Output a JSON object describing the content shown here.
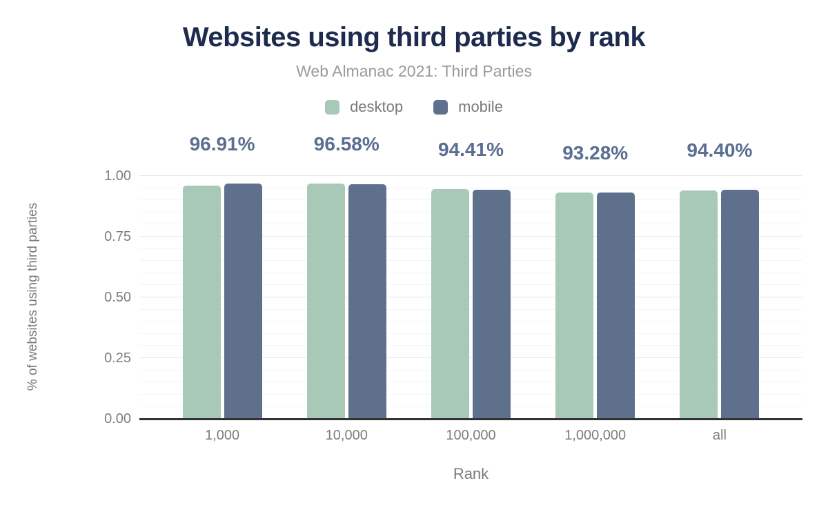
{
  "chart_data": {
    "type": "bar",
    "title": "Websites using third parties by rank",
    "subtitle": "Web Almanac 2021: Third Parties",
    "xlabel": "Rank",
    "ylabel": "% of websites using third parties",
    "categories": [
      "1,000",
      "10,000",
      "100,000",
      "1,000,000",
      "all"
    ],
    "series": [
      {
        "name": "desktop",
        "color": "#a8c9b8",
        "values": [
          0.961,
          0.969,
          0.945,
          0.931,
          0.939
        ]
      },
      {
        "name": "mobile",
        "color": "#5f708d",
        "values": [
          0.9691,
          0.9658,
          0.9441,
          0.9328,
          0.944
        ]
      }
    ],
    "data_labels": [
      "96.91%",
      "96.58%",
      "94.41%",
      "93.28%",
      "94.40%"
    ],
    "ylim": [
      0,
      1.0
    ],
    "yticks": [
      "0.00",
      "0.25",
      "0.50",
      "0.75",
      "1.00"
    ],
    "ytick_values": [
      0,
      0.25,
      0.5,
      0.75,
      1.0
    ],
    "grid": true,
    "minor_grid_step": 0.05,
    "legend_position": "top"
  },
  "colors": {
    "title": "#1f2b4e",
    "subtitle": "#9a9a9a",
    "axis_text": "#7d7d7d",
    "data_label": "#5a6e91",
    "baseline": "#333333",
    "grid_major": "#e7e7e7",
    "grid_minor": "#f5f5f5",
    "background": "#ffffff"
  }
}
